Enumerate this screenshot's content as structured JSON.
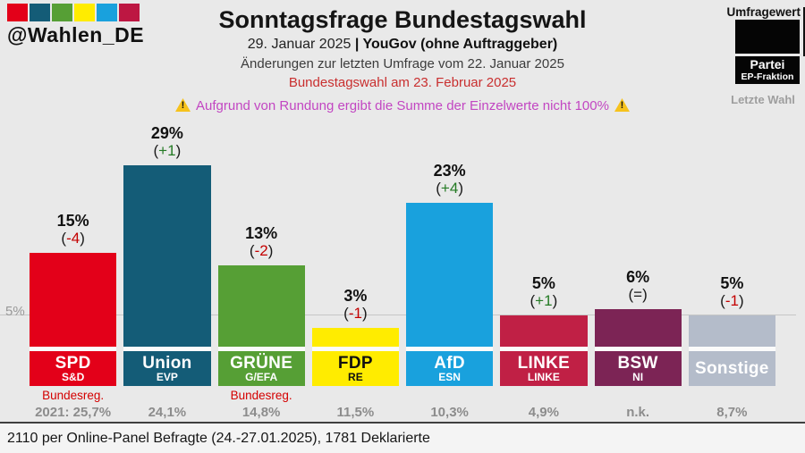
{
  "brand": {
    "handle": "@Wahlen_DE",
    "logo_colors": [
      "#e30019",
      "#145c77",
      "#569f35",
      "#ffec00",
      "#19a1dd",
      "#bd1742"
    ]
  },
  "header": {
    "title": "Sonntagsfrage Bundestagswahl",
    "date_part": "29. Januar 2025 ",
    "pollster_part": "| YouGov (ohne Auftraggeber)",
    "change_note": "Änderungen zur letzten Umfrage vom 22. Januar 2025",
    "election_note": "Bundestagswahl am 23. Februar 2025",
    "warning_text": "Aufgrund von Rundung ergibt die Summe der Einzelwerte nicht 100%",
    "warning_icon": "⚠"
  },
  "legend": {
    "umfragewert": "Umfragewert",
    "partei": "Partei",
    "ep_fraktion": "EP-Fraktion",
    "letzte_wahl": "Letzte Wahl",
    "box_color": "#050505"
  },
  "axis": {
    "gridline_label": "5%",
    "gridline_value": 5
  },
  "chart_data": {
    "type": "bar",
    "title": "Sonntagsfrage Bundestagswahl",
    "unit": "%",
    "ylim": [
      0,
      36
    ],
    "gridlines": [
      5
    ],
    "legend_position": "top-right",
    "categories": [
      "SPD",
      "Union",
      "GRÜNE",
      "FDP",
      "AfD",
      "LINKE",
      "BSW",
      "Sonstige"
    ],
    "values": [
      15,
      29,
      13,
      3,
      23,
      5,
      6,
      5
    ],
    "changes": [
      "-4",
      "+1",
      "-2",
      "-1",
      "+4",
      "+1",
      "=",
      "-1"
    ],
    "change_colors": {
      "up": "#247a24",
      "down": "#c40000",
      "eq": "#1a1a1a"
    },
    "parties": [
      {
        "name": "SPD",
        "ep_group": "S&D",
        "value": 15,
        "value_label": "15%",
        "change": "-4",
        "change_dir": "down",
        "color": "#e30019",
        "text_color": "#ffffff",
        "gov_note": "Bundesreg.",
        "last_election": "2021: 25,7%"
      },
      {
        "name": "Union",
        "ep_group": "EVP",
        "value": 29,
        "value_label": "29%",
        "change": "+1",
        "change_dir": "up",
        "color": "#145c77",
        "text_color": "#ffffff",
        "gov_note": "",
        "last_election": "24,1%"
      },
      {
        "name": "GRÜNE",
        "ep_group": "G/EFA",
        "value": 13,
        "value_label": "13%",
        "change": "-2",
        "change_dir": "down",
        "color": "#569f35",
        "text_color": "#ffffff",
        "gov_note": "Bundesreg.",
        "last_election": "14,8%"
      },
      {
        "name": "FDP",
        "ep_group": "RE",
        "value": 3,
        "value_label": "3%",
        "change": "-1",
        "change_dir": "down",
        "color": "#ffec00",
        "text_color": "#111111",
        "gov_note": "",
        "last_election": "11,5%"
      },
      {
        "name": "AfD",
        "ep_group": "ESN",
        "value": 23,
        "value_label": "23%",
        "change": "+4",
        "change_dir": "up",
        "color": "#19a1dd",
        "text_color": "#ffffff",
        "gov_note": "",
        "last_election": "10,3%"
      },
      {
        "name": "LINKE",
        "ep_group": "LINKE",
        "value": 5,
        "value_label": "5%",
        "change": "+1",
        "change_dir": "up",
        "color": "#c02045",
        "text_color": "#ffffff",
        "gov_note": "",
        "last_election": "4,9%"
      },
      {
        "name": "BSW",
        "ep_group": "NI",
        "value": 6,
        "value_label": "6%",
        "change": "=",
        "change_dir": "eq",
        "color": "#7c2455",
        "text_color": "#ffffff",
        "gov_note": "",
        "last_election": "n.k."
      },
      {
        "name": "Sonstige",
        "ep_group": "",
        "value": 5,
        "value_label": "5%",
        "change": "-1",
        "change_dir": "down",
        "color": "#b4bcca",
        "text_color": "#ffffff",
        "gov_note": "",
        "last_election": "8,7%"
      }
    ]
  },
  "footer": {
    "text": "2110 per Online-Panel Befragte (24.-27.01.2025), 1781 Deklarierte"
  }
}
